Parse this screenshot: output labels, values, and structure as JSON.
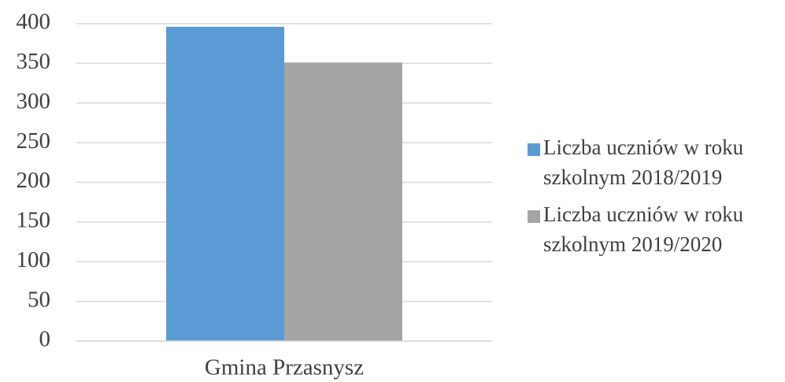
{
  "chart_data": {
    "type": "bar",
    "categories": [
      "Gmina Przasnysz"
    ],
    "series": [
      {
        "name": "Liczba uczniów w roku szkolnym 2018/2019",
        "color": "#5b9bd5",
        "values": [
          396
        ]
      },
      {
        "name": "Liczba uczniów w roku szkolnym 2019/2020",
        "color": "#a5a5a5",
        "values": [
          351
        ]
      }
    ],
    "ylim": [
      0,
      400
    ],
    "yticks": [
      0,
      50,
      100,
      150,
      200,
      250,
      300,
      350,
      400
    ],
    "grid": true,
    "legend": "right"
  }
}
